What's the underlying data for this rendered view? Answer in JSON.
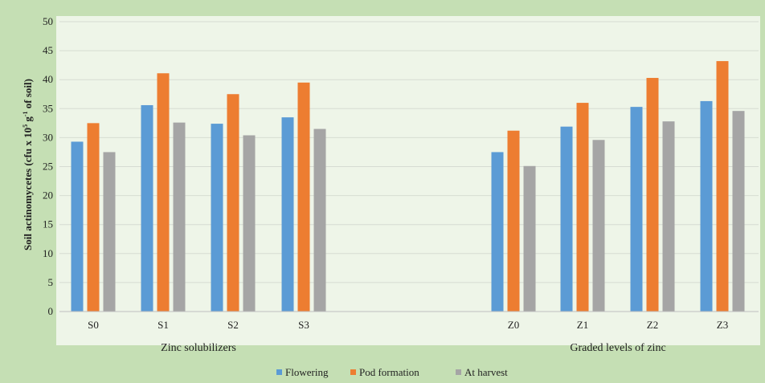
{
  "chart_data": {
    "type": "bar",
    "categories": [
      "S0",
      "S1",
      "S2",
      "S3",
      "Z0",
      "Z1",
      "Z2",
      "Z3"
    ],
    "groups": [
      {
        "label": "Zinc solubilizers",
        "categories": [
          "S0",
          "S1",
          "S2",
          "S3"
        ]
      },
      {
        "label": "Graded levels of zinc",
        "categories": [
          "Z0",
          "Z1",
          "Z2",
          "Z3"
        ]
      }
    ],
    "series": [
      {
        "name": "Flowering",
        "color": "#5b9bd5",
        "values": [
          29.3,
          35.6,
          32.4,
          33.5,
          27.5,
          31.9,
          35.3,
          36.3
        ]
      },
      {
        "name": "Pod formation",
        "color": "#ed7d31",
        "values": [
          32.5,
          41.1,
          37.5,
          39.5,
          31.2,
          36.0,
          40.3,
          43.2
        ]
      },
      {
        "name": "At harvest",
        "color": "#a5a5a5",
        "values": [
          27.5,
          32.6,
          30.4,
          31.5,
          25.1,
          29.6,
          32.8,
          34.6
        ]
      }
    ],
    "ylabel": {
      "prefix": "Soil actinomycetes (cfu x 10",
      "sup1": "5",
      "middle": " g",
      "sup2": "-1",
      "suffix": " of soil)"
    },
    "ylim": [
      0,
      50
    ],
    "yticks": [
      0,
      5,
      10,
      15,
      20,
      25,
      30,
      35,
      40,
      45,
      50
    ],
    "grid": true,
    "legend_position": "bottom"
  }
}
